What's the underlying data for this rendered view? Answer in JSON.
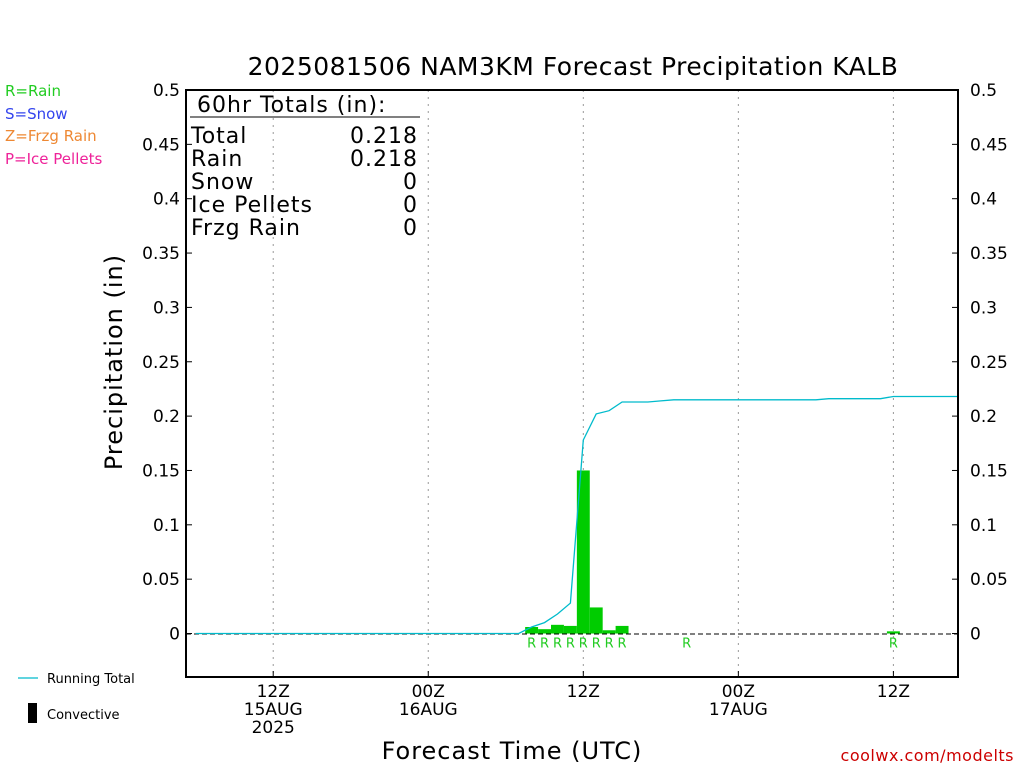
{
  "chart_data": {
    "type": "bar",
    "title": "2025081506 NAM3KM Forecast Precipitation KALB",
    "xlabel": "Forecast Time (UTC)",
    "ylabel": "Precipitation (in)",
    "ylim": [
      -0.04,
      0.5
    ],
    "y_ticks": [
      0,
      0.05,
      0.1,
      0.15,
      0.2,
      0.25,
      0.3,
      0.35,
      0.4,
      0.45,
      0.5
    ],
    "y_tick_labels": [
      "0",
      "0.05",
      "0.1",
      "0.15",
      "0.2",
      "0.25",
      "0.3",
      "0.35",
      "0.4",
      "0.45",
      "0.5"
    ],
    "xlim": [
      -0.75,
      59.0
    ],
    "x_ticks": [
      {
        "hour": 6,
        "lines": [
          "12Z",
          "15AUG",
          "2025"
        ]
      },
      {
        "hour": 18,
        "lines": [
          "00Z",
          "16AUG"
        ]
      },
      {
        "hour": 30,
        "lines": [
          "12Z"
        ]
      },
      {
        "hour": 42,
        "lines": [
          "00Z",
          "17AUG"
        ]
      },
      {
        "hour": 54,
        "lines": [
          "12Z"
        ]
      }
    ],
    "grid": "vertical dotted at x ticks",
    "bars": {
      "name": "Rain",
      "color": "#00cc00",
      "hours": [
        26,
        27,
        28,
        29,
        30,
        31,
        32,
        33,
        34,
        54
      ],
      "values": [
        0.006,
        0.004,
        0.008,
        0.007,
        0.15,
        0.024,
        0.003,
        0.007,
        0.0,
        0.002
      ]
    },
    "running_total": {
      "name": "Running Total",
      "color": "#00bbcc",
      "hours": [
        0,
        1,
        2,
        3,
        4,
        5,
        6,
        7,
        8,
        9,
        10,
        11,
        12,
        13,
        14,
        15,
        16,
        17,
        18,
        19,
        20,
        21,
        22,
        23,
        24,
        25,
        26,
        27,
        28,
        29,
        30,
        31,
        32,
        33,
        34,
        35,
        36,
        37,
        38,
        39,
        40,
        41,
        42,
        43,
        44,
        45,
        46,
        47,
        48,
        49,
        50,
        51,
        52,
        53,
        54,
        55,
        56,
        57,
        58,
        59
      ],
      "values": [
        0,
        0,
        0,
        0,
        0,
        0,
        0,
        0,
        0,
        0,
        0,
        0,
        0,
        0,
        0,
        0,
        0,
        0,
        0,
        0,
        0,
        0,
        0,
        0,
        0,
        0,
        0.006,
        0.01,
        0.018,
        0.028,
        0.178,
        0.202,
        0.205,
        0.213,
        0.213,
        0.213,
        0.214,
        0.215,
        0.215,
        0.215,
        0.215,
        0.215,
        0.215,
        0.215,
        0.215,
        0.215,
        0.215,
        0.215,
        0.215,
        0.216,
        0.216,
        0.216,
        0.216,
        0.216,
        0.218,
        0.218,
        0.218,
        0.218,
        0.218,
        0.218
      ]
    },
    "precip_type_labels": [
      {
        "hour": 26,
        "text": "R"
      },
      {
        "hour": 27,
        "text": "R"
      },
      {
        "hour": 28,
        "text": "R"
      },
      {
        "hour": 29,
        "text": "R"
      },
      {
        "hour": 30,
        "text": "R"
      },
      {
        "hour": 31,
        "text": "R"
      },
      {
        "hour": 32,
        "text": "R"
      },
      {
        "hour": 33,
        "text": "R"
      },
      {
        "hour": 38,
        "text": "R"
      },
      {
        "hour": 54,
        "text": "R"
      }
    ],
    "totals": {
      "header": "60hr Totals (in):",
      "rows": [
        {
          "label": "Total",
          "value": "0.218"
        },
        {
          "label": "Rain",
          "value": "0.218"
        },
        {
          "label": "Snow",
          "value": "0"
        },
        {
          "label": "Ice Pellets",
          "value": "0"
        },
        {
          "label": "Frzg Rain",
          "value": "0"
        }
      ]
    },
    "type_legend": [
      {
        "text": "R=Rain",
        "color": "#22cc22"
      },
      {
        "text": "S=Snow",
        "color": "#3344ee"
      },
      {
        "text": "Z=Frzg Rain",
        "color": "#ee8833"
      },
      {
        "text": "P=Ice Pellets",
        "color": "#ee2299"
      }
    ],
    "series_legend": [
      {
        "text": "Running Total",
        "color": "#00bbcc"
      },
      {
        "text": "Convective",
        "color": "#000000"
      }
    ],
    "credit": "coolwx.com/modelts",
    "credit_color": "#cc0000"
  }
}
